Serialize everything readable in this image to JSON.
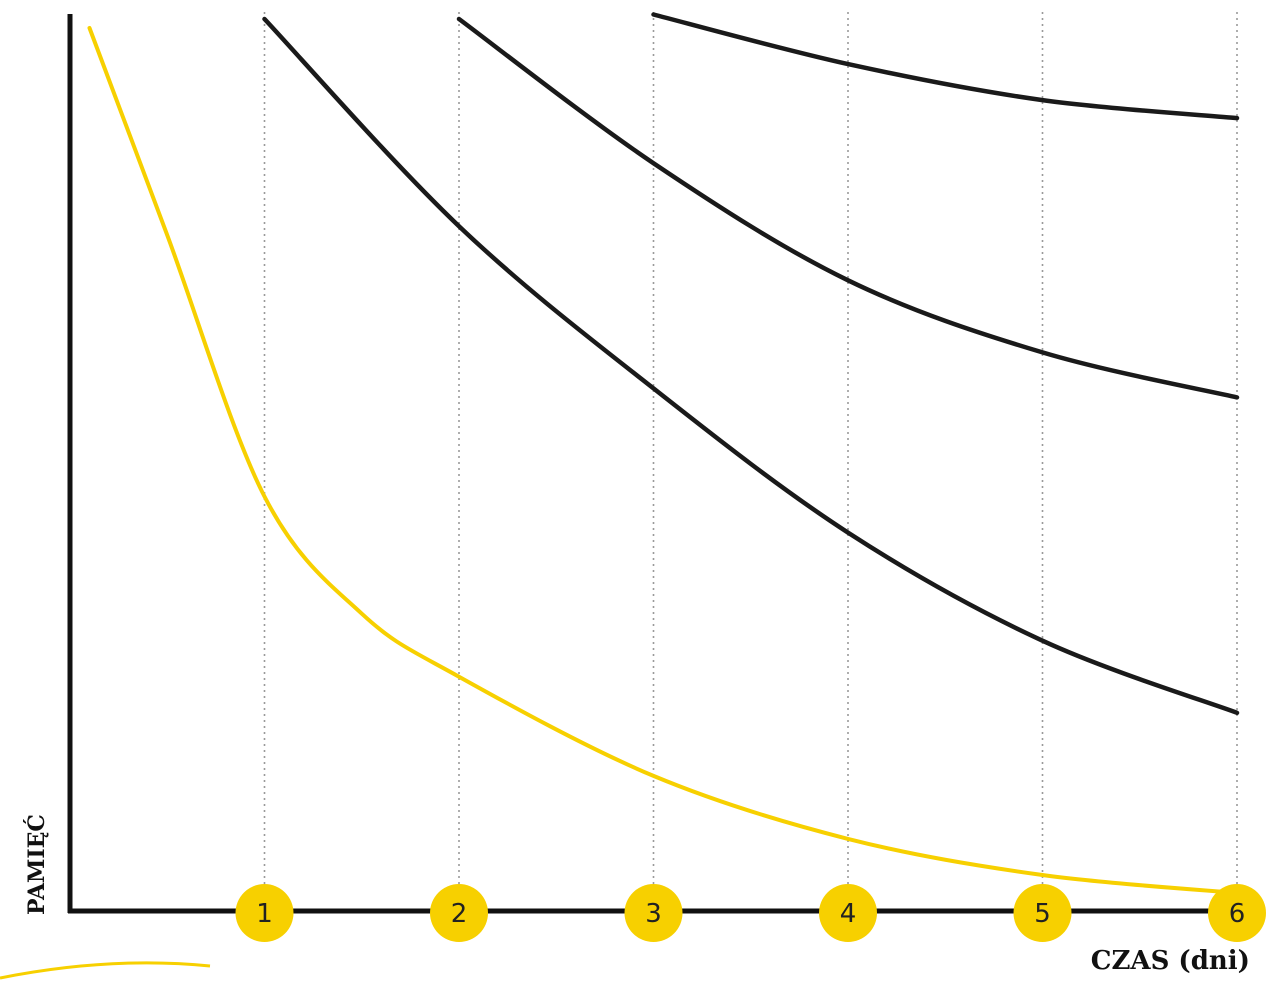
{
  "chart_data": {
    "type": "line",
    "xlabel": "CZAS (dni)",
    "ylabel": "PAMIĘĆ",
    "x_ticks": [
      "1",
      "2",
      "3",
      "4",
      "5",
      "6"
    ],
    "xlim": [
      0,
      6
    ],
    "ylim": [
      0,
      100
    ],
    "grid": "vertical dotted lines at each tick",
    "series": [
      {
        "color": "#f7d000",
        "points": [
          [
            0.1,
            98
          ],
          [
            0.5,
            75
          ],
          [
            1,
            46
          ],
          [
            1.5,
            33
          ],
          [
            2,
            26
          ],
          [
            3,
            15
          ],
          [
            4,
            8
          ],
          [
            5,
            4
          ],
          [
            6,
            2
          ]
        ]
      },
      {
        "color": "#1a1a1a",
        "points": [
          [
            1,
            99
          ],
          [
            2,
            76
          ],
          [
            3,
            58
          ],
          [
            4,
            42
          ],
          [
            5,
            30
          ],
          [
            6,
            22
          ]
        ]
      },
      {
        "color": "#1a1a1a",
        "points": [
          [
            2,
            99
          ],
          [
            3,
            83
          ],
          [
            4,
            70
          ],
          [
            5,
            62
          ],
          [
            6,
            57
          ]
        ]
      },
      {
        "color": "#1a1a1a",
        "points": [
          [
            3,
            99.5
          ],
          [
            4,
            94
          ],
          [
            5,
            90
          ],
          [
            6,
            88
          ]
        ]
      }
    ],
    "tick_marker_color": "#f7d000"
  }
}
